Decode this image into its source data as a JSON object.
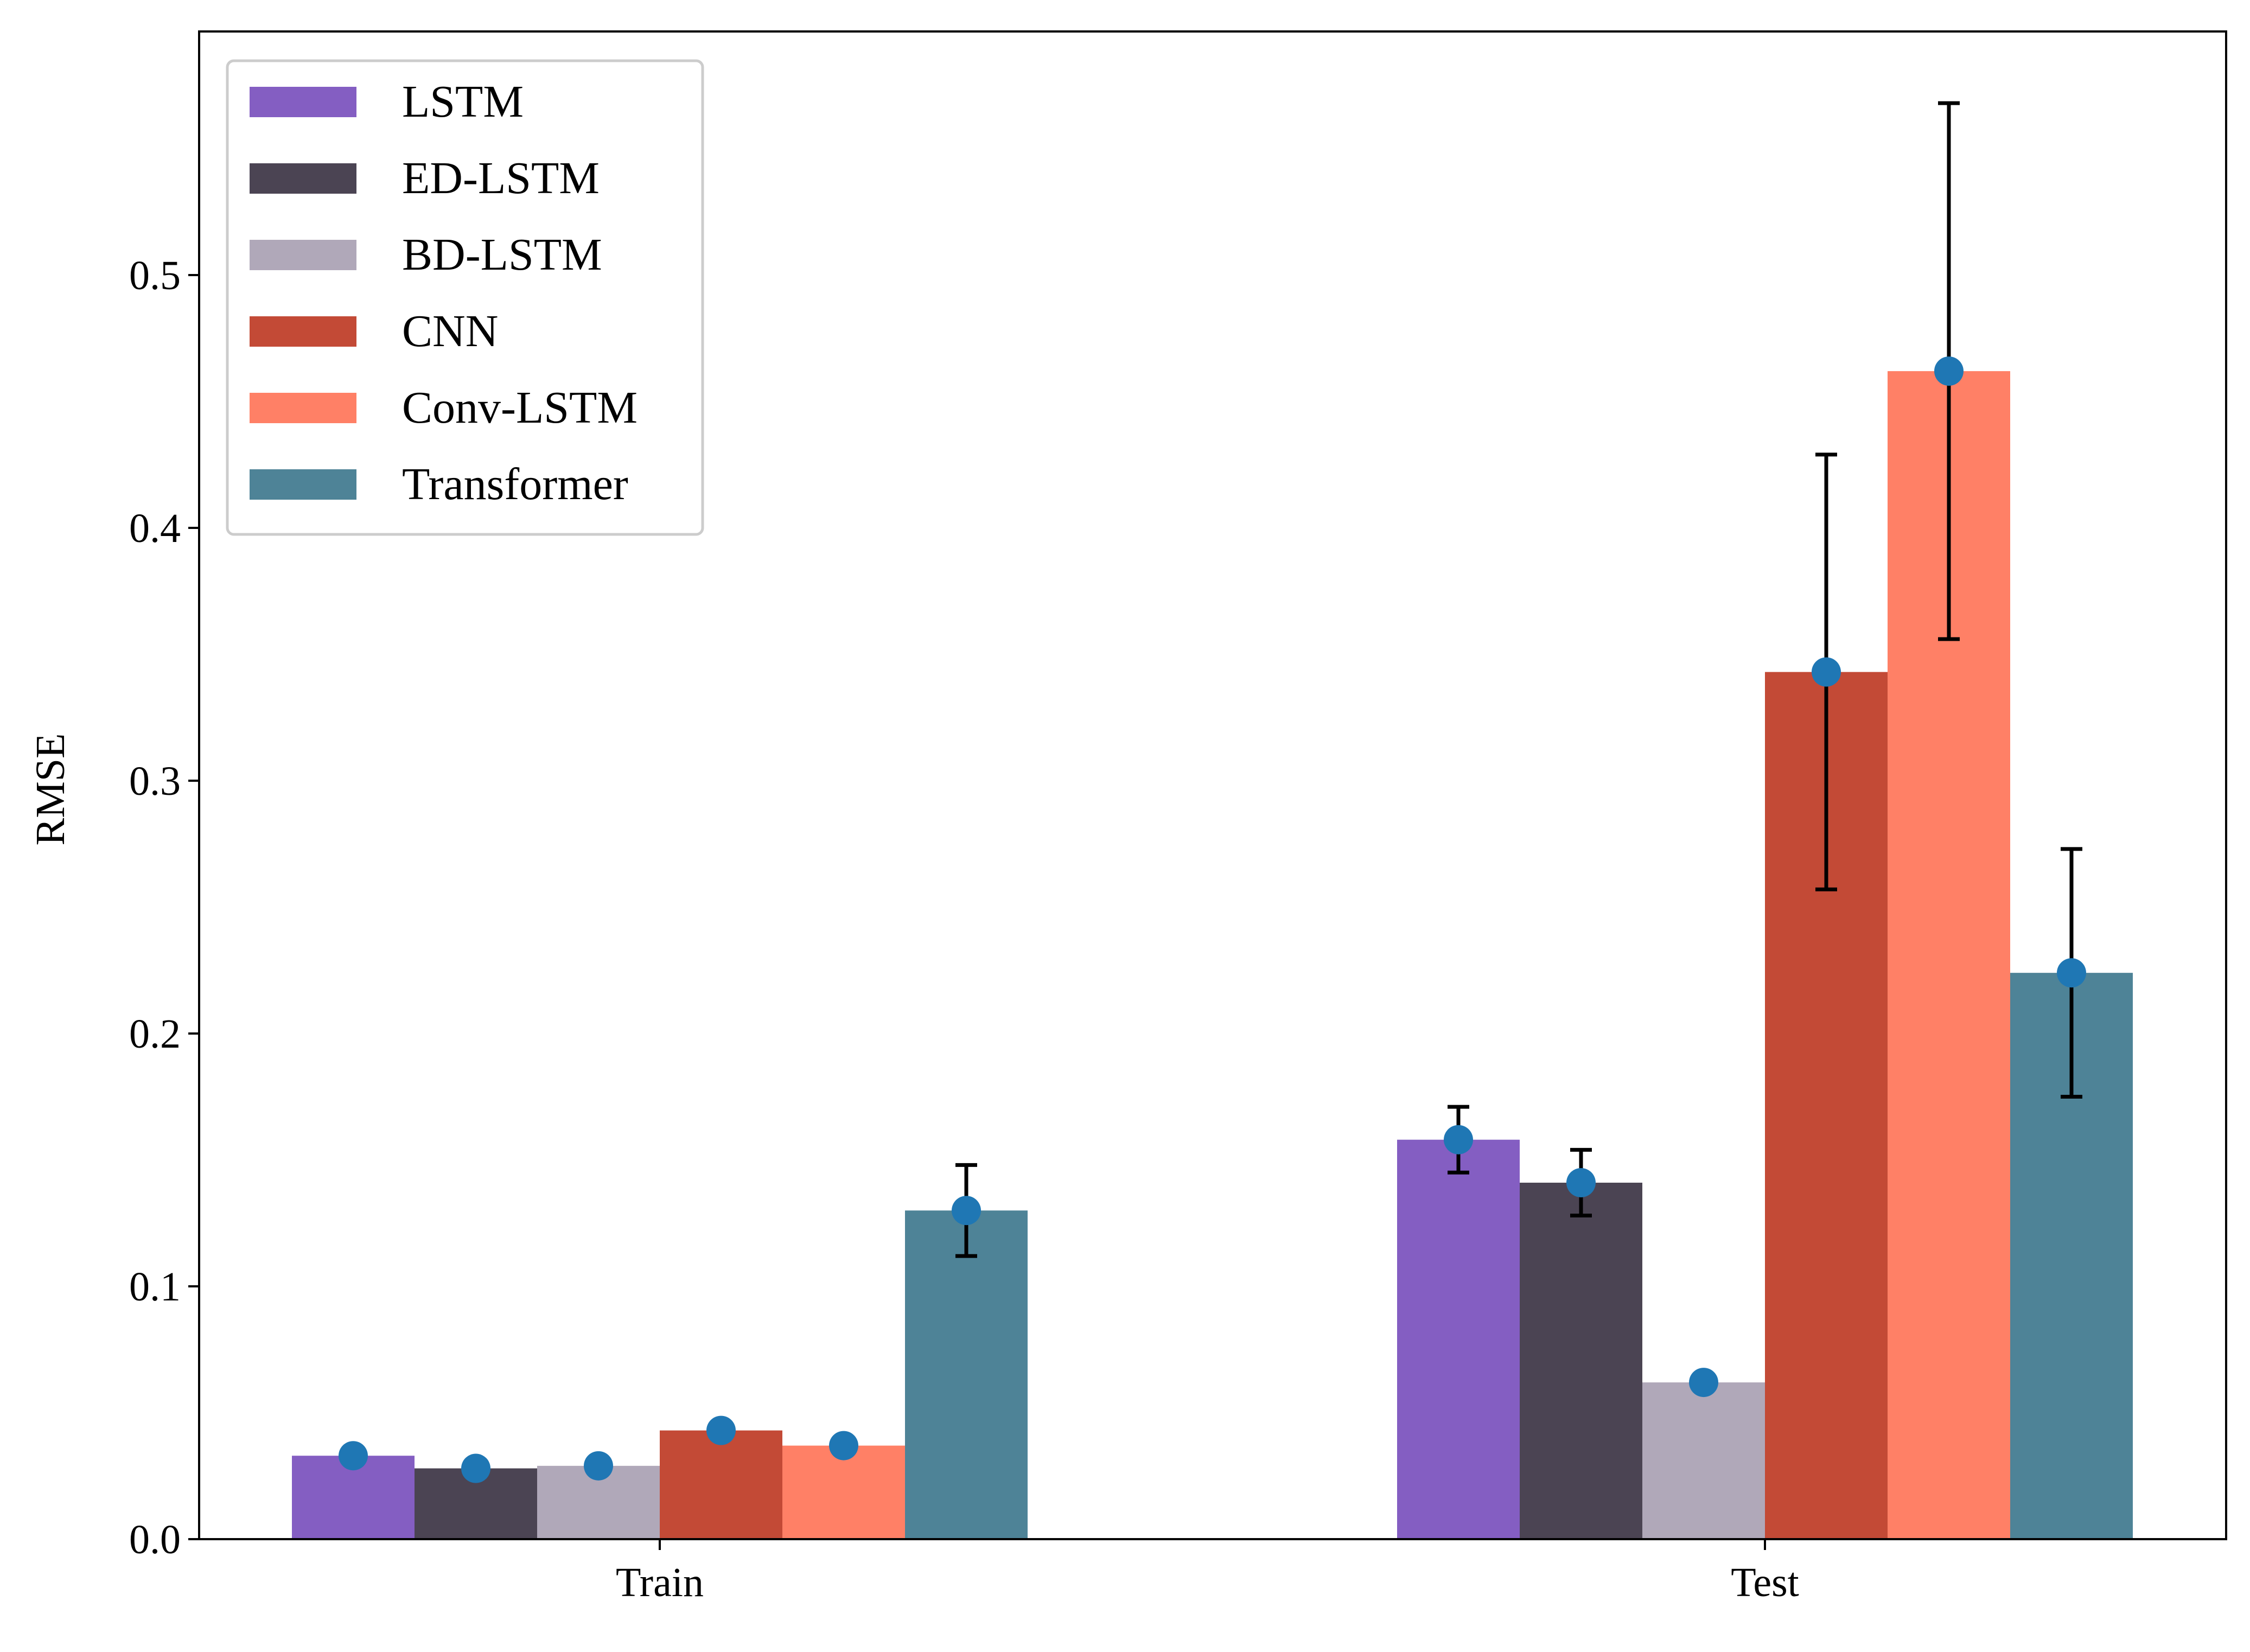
{
  "chart_data": {
    "type": "bar",
    "title": "",
    "xlabel": "",
    "ylabel": "RMSE",
    "categories": [
      "Train",
      "Test"
    ],
    "ylim": [
      0.0,
      0.6
    ],
    "yticks": [
      "0.0",
      "0.1",
      "0.2",
      "0.3",
      "0.4",
      "0.5"
    ],
    "grid": false,
    "legend_position": "top-left",
    "marker_color": "#1f77b4",
    "series": [
      {
        "name": "LSTM",
        "color": "#845EC2",
        "values": [
          0.033,
          0.158
        ],
        "errors": [
          null,
          0.013
        ]
      },
      {
        "name": "ED-LSTM",
        "color": "#4B4453",
        "values": [
          0.028,
          0.141
        ],
        "errors": [
          null,
          0.013
        ]
      },
      {
        "name": "BD-LSTM",
        "color": "#B0A8B9",
        "values": [
          0.029,
          0.062
        ],
        "errors": [
          null,
          null
        ]
      },
      {
        "name": "CNN",
        "color": "#C34A36",
        "values": [
          0.043,
          0.343
        ],
        "errors": [
          null,
          0.086
        ]
      },
      {
        "name": "Conv-LSTM",
        "color": "#FF8066",
        "values": [
          0.037,
          0.462
        ],
        "errors": [
          null,
          0.106
        ]
      },
      {
        "name": "Transformer",
        "color": "#4E8397",
        "values": [
          0.13,
          0.224
        ],
        "errors": [
          0.018,
          0.049
        ]
      }
    ]
  }
}
